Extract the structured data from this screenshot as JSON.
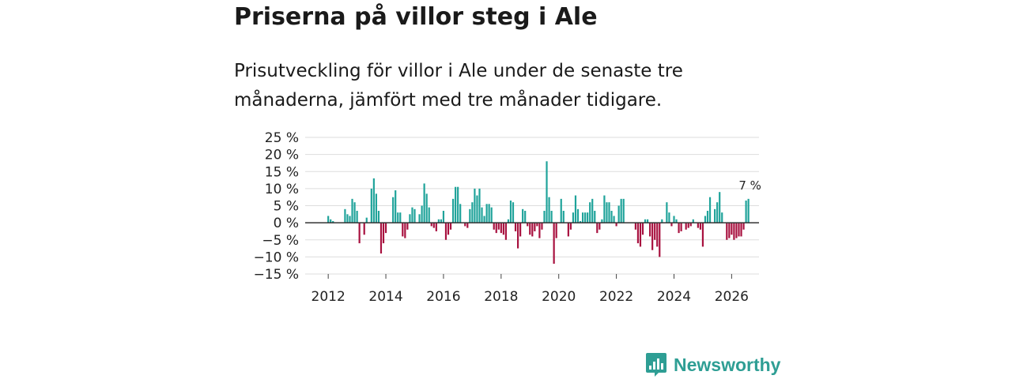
{
  "title": "Priserna på villor steg i Ale",
  "subtitle": "Prisutveckling för villor i Ale under de senaste tre månaderna, jämfört med tre månader tidigare.",
  "brand": {
    "name": "Newsworthy",
    "logo_icon": "bar-chart-icon"
  },
  "colors": {
    "positive": "#1fa39a",
    "negative": "#a8113f",
    "zero_line": "#333333",
    "grid": "#dddddd"
  },
  "chart_data": {
    "type": "bar",
    "title": "Priserna på villor steg i Ale",
    "ylabel": "",
    "xlabel": "",
    "ylim": [
      -15,
      25
    ],
    "xlim": [
      2011.2,
      2026.95
    ],
    "yticks": [
      25,
      20,
      15,
      10,
      5,
      0,
      -5,
      -10,
      -15
    ],
    "ytick_labels": [
      "25 %",
      "20 %",
      "15 %",
      "10 %",
      "5 %",
      "0 %",
      "−5 %",
      "−10 %",
      "−15 %"
    ],
    "xticks": [
      2012,
      2014,
      2016,
      2018,
      2020,
      2022,
      2024,
      2026
    ],
    "xtick_labels": [
      "2012",
      "2014",
      "2016",
      "2018",
      "2020",
      "2022",
      "2024",
      "2026"
    ],
    "start_year": 2012,
    "start_month": 1,
    "value_unit": "%",
    "last_value_label": "7 %",
    "values": [
      2,
      1,
      0.5,
      0,
      0,
      0,
      0,
      4,
      2.5,
      2,
      7,
      6,
      3.5,
      -6,
      0,
      -3.5,
      1.5,
      0,
      10,
      13,
      8.5,
      3.5,
      -9,
      -6,
      -3,
      0,
      0,
      7.5,
      9.5,
      3,
      3,
      -4,
      -4.5,
      -2,
      2.5,
      4.5,
      4,
      0,
      2.5,
      5,
      11.5,
      8.5,
      4.5,
      -1,
      -1.5,
      -2.5,
      1,
      1,
      3.5,
      -5,
      -3.5,
      -2,
      7,
      10.5,
      10.5,
      5.5,
      0,
      -1,
      -1.5,
      4,
      6,
      10,
      8,
      10,
      4.5,
      2,
      5.5,
      5.5,
      4.5,
      -2,
      -3,
      -2,
      -3,
      -3.5,
      -5,
      1,
      6.5,
      6,
      -2.5,
      -7.5,
      -4,
      4,
      3.5,
      -1,
      -3.5,
      -4,
      -2.5,
      -1,
      -4.5,
      -2,
      3.5,
      18,
      7.5,
      3.5,
      -12,
      -4.5,
      0,
      7,
      3.5,
      0,
      -4,
      -2,
      3,
      8,
      4,
      0.5,
      3,
      3,
      3,
      6,
      7,
      3.5,
      -3,
      -2,
      1,
      8,
      6,
      6,
      3.5,
      2,
      -1,
      5,
      7,
      7,
      0,
      0,
      0,
      0,
      -2,
      -6,
      -7,
      -3.5,
      1,
      1,
      -4,
      -8,
      -5,
      -7,
      -10,
      1,
      0,
      6,
      3,
      -1,
      2,
      1,
      -3,
      -2.5,
      0,
      -2,
      -1.5,
      -1,
      1,
      0,
      -1.5,
      -2,
      -7,
      2,
      3.5,
      7.5,
      0,
      4,
      6,
      9,
      3,
      0,
      -5,
      -4.5,
      -3.5,
      -5,
      -4.5,
      -4,
      -4,
      -2,
      6.5,
      7
    ]
  }
}
